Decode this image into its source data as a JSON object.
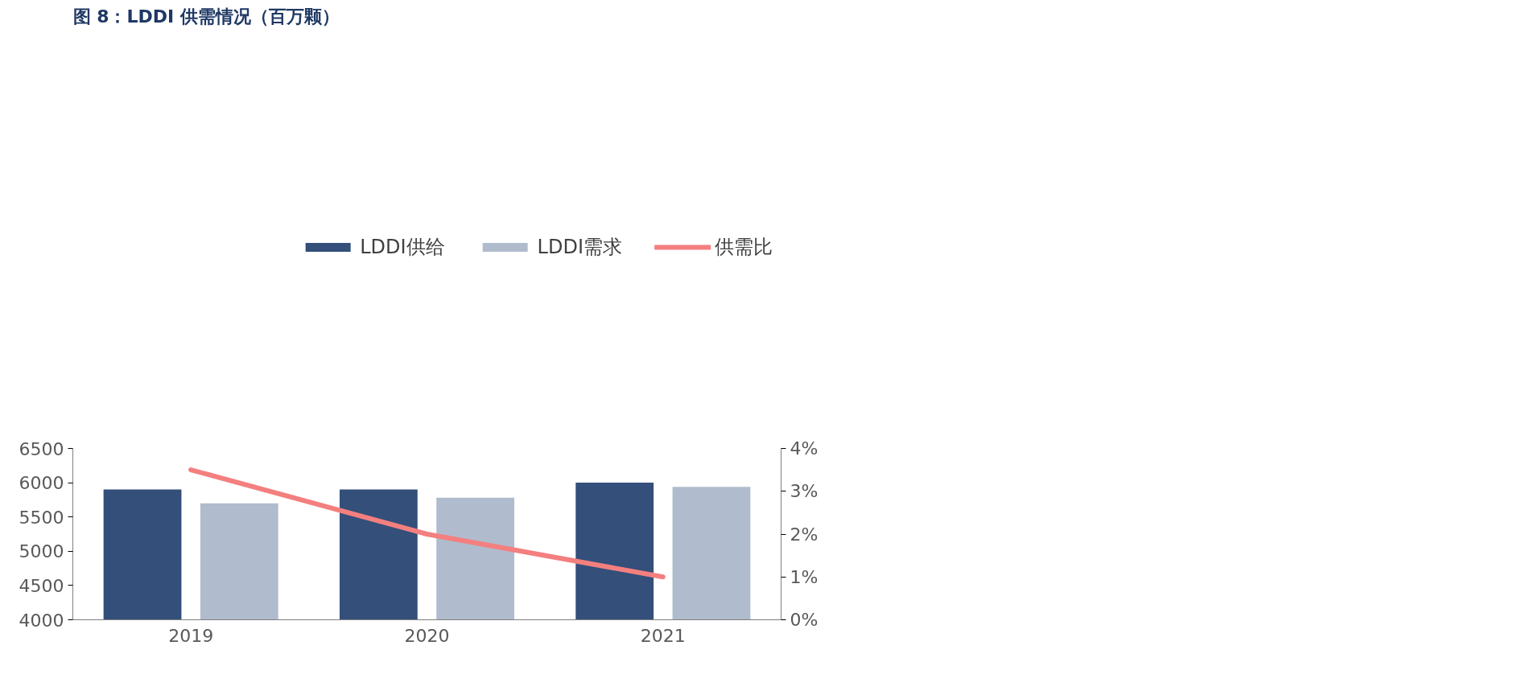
{
  "chart_data": {
    "type": "bar",
    "title": "图 8：LDDI 供需情况（百万颗）",
    "categories": [
      "2019",
      "2020",
      "2021"
    ],
    "series": [
      {
        "name": "LDDI供给",
        "color": "#334f7a",
        "values": [
          5900,
          5900,
          6000
        ]
      },
      {
        "name": "LDDI需求",
        "color": "#b0bccd",
        "values": [
          5700,
          5780,
          5940
        ]
      },
      {
        "name": "供需比",
        "type": "line",
        "axis": "y2",
        "color": "#f47f7f",
        "values": [
          3.5,
          2.0,
          1.0
        ]
      }
    ],
    "ylim": [
      4000,
      6500
    ],
    "yticks": [
      4000,
      4500,
      5000,
      5500,
      6000,
      6500
    ],
    "y2lim": [
      0,
      4
    ],
    "y2ticks": [
      {
        "value": 0,
        "label": "0%"
      },
      {
        "value": 1,
        "label": "1%"
      },
      {
        "value": 2,
        "label": "2%"
      },
      {
        "value": 3,
        "label": "3%"
      },
      {
        "value": 4,
        "label": "4%"
      }
    ],
    "grid": false,
    "legend": "top"
  }
}
